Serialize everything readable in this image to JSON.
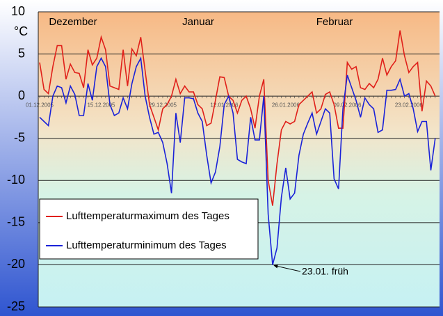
{
  "chart_data": {
    "type": "line",
    "y_unit": "°C",
    "month_labels": [
      "Dezember",
      "Januar",
      "Februar"
    ],
    "categories": [
      "01.12.2005",
      null,
      null,
      null,
      null,
      null,
      null,
      null,
      null,
      null,
      null,
      null,
      null,
      null,
      "15.12.2005",
      null,
      null,
      null,
      null,
      null,
      null,
      null,
      null,
      null,
      null,
      null,
      null,
      null,
      "29.12.2005",
      null,
      null,
      null,
      null,
      null,
      null,
      null,
      null,
      null,
      null,
      null,
      null,
      null,
      "12.01.2006",
      null,
      null,
      null,
      null,
      null,
      null,
      null,
      null,
      null,
      null,
      null,
      null,
      null,
      "26.01.2006",
      null,
      null,
      null,
      null,
      null,
      null,
      null,
      null,
      null,
      null,
      null,
      null,
      null,
      "09.02.2006",
      null,
      null,
      null,
      null,
      null,
      null,
      null,
      null,
      null,
      null,
      null,
      null,
      null,
      "23.02.2006",
      null,
      null,
      null,
      null,
      null,
      null
    ],
    "series": [
      {
        "name": "Lufttemperaturmaximum des Tages",
        "color": "#e0201a",
        "values": [
          4,
          0.8,
          0.3,
          3.5,
          6,
          6,
          2,
          3.8,
          2.8,
          2.7,
          1,
          5.5,
          3.7,
          4.5,
          7,
          5.5,
          1.2,
          1,
          0.8,
          5.5,
          1.2,
          5.6,
          4.8,
          7,
          3,
          -1,
          -2.5,
          -4,
          -1.5,
          -1,
          0,
          2,
          0.3,
          1.2,
          0.5,
          0.5,
          -1,
          -1.5,
          -3.5,
          -3.2,
          -0.5,
          2.3,
          2.2,
          0,
          -0.5,
          -2,
          -0.5,
          0,
          -1.5,
          -3.8,
          0,
          2,
          -10,
          -13,
          -8,
          -4,
          -3,
          -3.3,
          -3,
          -1,
          -0.5,
          0,
          0.5,
          -2,
          -1.5,
          0.2,
          0.5,
          -1,
          -3.8,
          -3.8,
          4,
          3.2,
          3.5,
          1,
          0.8,
          1.5,
          1,
          2,
          4.5,
          2.5,
          3.5,
          4.2,
          7.8,
          4.8,
          2.8,
          3.5,
          4,
          -1.8,
          1.8,
          1.2,
          0
        ]
      },
      {
        "name": "Lufttemperaturminimum des Tages",
        "color": "#1a22d8",
        "values": [
          -2.5,
          -3,
          -3.5,
          0,
          1.2,
          1,
          -0.8,
          1.2,
          0.2,
          -2.3,
          -2.3,
          1.5,
          -0.5,
          3.5,
          4.5,
          3.5,
          -1,
          -2.3,
          -2,
          -0.2,
          -1.5,
          1.5,
          3.5,
          4.5,
          0,
          -2.5,
          -4.5,
          -4.3,
          -5.5,
          -8,
          -11.5,
          -2,
          -5.5,
          -0.2,
          -0.2,
          -0.3,
          -2,
          -3,
          -7,
          -10.3,
          -9,
          -6,
          -1,
          0,
          -2,
          -7.5,
          -7.8,
          -8,
          -2.5,
          -5.2,
          -5.2,
          0,
          -14,
          -20,
          -18,
          -12,
          -8.5,
          -12.2,
          -11.5,
          -7,
          -4.5,
          -3.2,
          -2,
          -4.5,
          -3,
          -1.5,
          -2,
          -9.8,
          -11,
          -1.5,
          2.5,
          1,
          -0.5,
          -2.5,
          -0.2,
          -1,
          -1.5,
          -4.3,
          -4,
          0.7,
          0.7,
          0.8,
          2,
          0,
          0.3,
          -1.5,
          -4.2,
          -3,
          -3,
          -8.8,
          -5
        ]
      }
    ],
    "annotation": {
      "text": "23.01. früh",
      "series": 1,
      "index": 53
    },
    "ylim": [
      -25,
      10
    ],
    "yticks": [
      10,
      5,
      0,
      -5,
      -10,
      -15,
      -20,
      -25
    ],
    "grid": true,
    "legend": "lower left"
  }
}
